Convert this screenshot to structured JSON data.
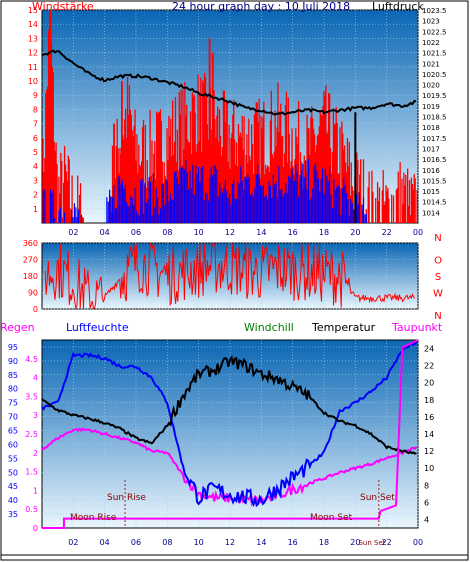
{
  "top_title": "24 hour graph day : 10 Juli 2018",
  "labels": {
    "windstaerke": "Windstärke",
    "luftdruck": "Luftdruck",
    "regen": "Regen",
    "luftfeuchte": "Luftfeuchte",
    "windchill": "Windchill",
    "temperatur": "Temperatur",
    "taupunkt": "Taupunkt",
    "sun_rise": "Sun Rise",
    "sun_set": "Sun Set",
    "moon_rise": "Moon Rise",
    "moon_set": "Moon Set"
  },
  "colors": {
    "sky_top": "#0a66b4",
    "sky_bottom": "#eaf6fd",
    "pressure": "#000000",
    "wind_gust": "#ff0000",
    "wind_speed": "#0000ff",
    "direction": "#ff0000",
    "humidity": "#0000ff",
    "temperature": "#000000",
    "windchill": "#008000",
    "dewpoint": "#ff00ff",
    "rain": "#ff00ff",
    "astro": "#8b0000"
  },
  "chart_data": [
    {
      "type": "line",
      "title": "24 hour graph day : 10 Juli 2018",
      "x_ticks": [
        "02",
        "04",
        "06",
        "08",
        "10",
        "12",
        "14",
        "16",
        "18",
        "20",
        "22",
        "00"
      ],
      "left_axis": {
        "label": "Windstärke",
        "ylim": [
          0,
          15
        ],
        "ticks": [
          "1",
          "2",
          "3",
          "4",
          "5",
          "6",
          "7",
          "8",
          "9",
          "10",
          "11",
          "12",
          "13",
          "14",
          "15"
        ]
      },
      "right_axis": {
        "label": "Luftdruck",
        "ylim": [
          1013.5,
          1023.5
        ],
        "ticks": [
          "1014",
          "1014.5",
          "1015",
          "1015.5",
          "1016",
          "1016.5",
          "1017",
          "1017.5",
          "1018",
          "1018.5",
          "1019",
          "1019.5",
          "1020",
          "1020.5",
          "1021",
          "1021.5",
          "1022",
          "1022.5",
          "1023",
          "1023.5"
        ]
      },
      "series": [
        {
          "name": "Luftdruck",
          "x": [
            0,
            1,
            2,
            3,
            4,
            5,
            6,
            7,
            8,
            9,
            10,
            11,
            12,
            13,
            14,
            15,
            16,
            17,
            18,
            19,
            20,
            21,
            22,
            23,
            24
          ],
          "values": [
            1021.4,
            1021.6,
            1021.0,
            1020.5,
            1020.2,
            1020.4,
            1020.4,
            1020.3,
            1020.1,
            1019.9,
            1019.6,
            1019.4,
            1019.2,
            1018.9,
            1018.8,
            1018.6,
            1018.7,
            1018.8,
            1018.7,
            1018.8,
            1018.9,
            1018.9,
            1019.1,
            1019.0,
            1019.2
          ]
        },
        {
          "name": "Windstärke",
          "x": [
            0,
            0.5,
            1,
            1.5,
            2,
            3,
            4,
            4.5,
            5,
            5.5,
            6,
            7,
            8,
            9,
            10,
            11,
            12,
            13,
            14,
            15,
            16,
            17,
            18,
            19,
            19.8,
            20.5,
            21,
            22,
            23,
            23.5
          ],
          "values": [
            2,
            14,
            2,
            3,
            1,
            0,
            0,
            3,
            6,
            8,
            5,
            5,
            6,
            7,
            8,
            7,
            6,
            6,
            6,
            7,
            6,
            5,
            7,
            5,
            3,
            2,
            1,
            1,
            2,
            1
          ]
        },
        {
          "name": "Windgeschwindigkeit",
          "x": [
            0,
            1,
            2,
            3,
            4,
            5,
            6,
            7,
            8,
            9,
            10,
            11,
            12,
            13,
            14,
            15,
            16,
            17,
            18,
            19,
            20,
            21,
            22,
            23
          ],
          "values": [
            1,
            1,
            0.5,
            0,
            0,
            3,
            2,
            2,
            2,
            3,
            3,
            3,
            2,
            3,
            3,
            3,
            3,
            3,
            3,
            2,
            1,
            0,
            0,
            0
          ]
        }
      ]
    },
    {
      "type": "line",
      "title": "",
      "y_ticks": [
        "0",
        "90",
        "180",
        "270",
        "360"
      ],
      "direction_labels": [
        "N",
        "W",
        "S",
        "O",
        "N"
      ],
      "ylim": [
        0,
        360
      ],
      "series": [
        {
          "name": "Windrichtung",
          "x": [
            0,
            1,
            2,
            3,
            4,
            5,
            6,
            7,
            8,
            9,
            10,
            11,
            12,
            13,
            14,
            15,
            16,
            17,
            18,
            19,
            20,
            21,
            22,
            23,
            24
          ],
          "values": [
            180,
            220,
            150,
            60,
            60,
            170,
            250,
            230,
            180,
            200,
            220,
            240,
            230,
            210,
            200,
            220,
            210,
            200,
            190,
            180,
            60,
            60,
            60,
            60,
            60
          ]
        }
      ]
    },
    {
      "type": "line",
      "title": "",
      "x_ticks": [
        "02",
        "04",
        "06",
        "08",
        "10",
        "12",
        "14",
        "16",
        "18",
        "20",
        "22",
        "00"
      ],
      "rain_axis": {
        "label": "Regen",
        "ylim": [
          0,
          5
        ],
        "ticks": [
          "0",
          "0.5",
          "1",
          "1.5",
          "2",
          "2.5",
          "3",
          "3.5",
          "4",
          "4.5"
        ]
      },
      "humidity_axis": {
        "label": "Luftfeuchte",
        "ylim": [
          30,
          97.5
        ],
        "ticks": [
          "35",
          "40",
          "45",
          "50",
          "55",
          "60",
          "65",
          "70",
          "75",
          "80",
          "85",
          "90",
          "95"
        ]
      },
      "temp_axis": {
        "label": "Temperatur",
        "ylim": [
          3,
          25
        ],
        "ticks": [
          "4",
          "6",
          "8",
          "10",
          "12",
          "14",
          "16",
          "18",
          "20",
          "22",
          "24"
        ]
      },
      "series": [
        {
          "name": "Luftfeuchte",
          "x": [
            0,
            1,
            2,
            3,
            4,
            5,
            6,
            7,
            8,
            9,
            10,
            11,
            12,
            13,
            14,
            15,
            16,
            17,
            18,
            19,
            20,
            21,
            22,
            23,
            24
          ],
          "values": [
            73,
            75,
            92,
            92,
            91,
            88,
            88,
            84,
            75,
            52,
            41,
            44,
            42,
            41,
            40,
            44,
            48,
            52,
            57,
            72,
            75,
            79,
            84,
            94,
            97
          ]
        },
        {
          "name": "Temperatur",
          "x": [
            0,
            1,
            2,
            3,
            4,
            5,
            6,
            7,
            8,
            9,
            10,
            11,
            12,
            13,
            14,
            15,
            16,
            17,
            18,
            19,
            20,
            21,
            22,
            23,
            24
          ],
          "values": [
            18.0,
            16.8,
            16.2,
            15.8,
            15.3,
            14.6,
            13.5,
            12.9,
            15.0,
            18.5,
            21.0,
            21.5,
            22.5,
            22.0,
            21.0,
            20.5,
            19.5,
            18.5,
            16.5,
            15.5,
            15.0,
            14.0,
            12.5,
            12.0,
            11.6
          ]
        },
        {
          "name": "Taupunkt",
          "x": [
            0,
            1,
            2,
            3,
            4,
            5,
            6,
            7,
            8,
            9,
            10,
            11,
            12,
            13,
            14,
            15,
            16,
            17,
            18,
            19,
            20,
            21,
            22,
            23,
            24
          ],
          "values": [
            12.2,
            13.5,
            14.5,
            14.5,
            14.0,
            13.5,
            13.0,
            12.0,
            11.8,
            9.2,
            7.0,
            6.5,
            6.5,
            6.3,
            6.2,
            6.8,
            7.5,
            8.2,
            8.8,
            9.5,
            10.0,
            10.5,
            11.2,
            11.8,
            12.5
          ]
        },
        {
          "name": "Regen",
          "x": [
            0,
            1,
            1.5,
            21.5,
            22,
            23,
            24
          ],
          "values": [
            0,
            0,
            0.25,
            0.25,
            0.4,
            4.8,
            5.0
          ]
        }
      ],
      "events": [
        "Sun Rise",
        "Sun Set",
        "Moon Rise",
        "Moon Set"
      ]
    }
  ]
}
